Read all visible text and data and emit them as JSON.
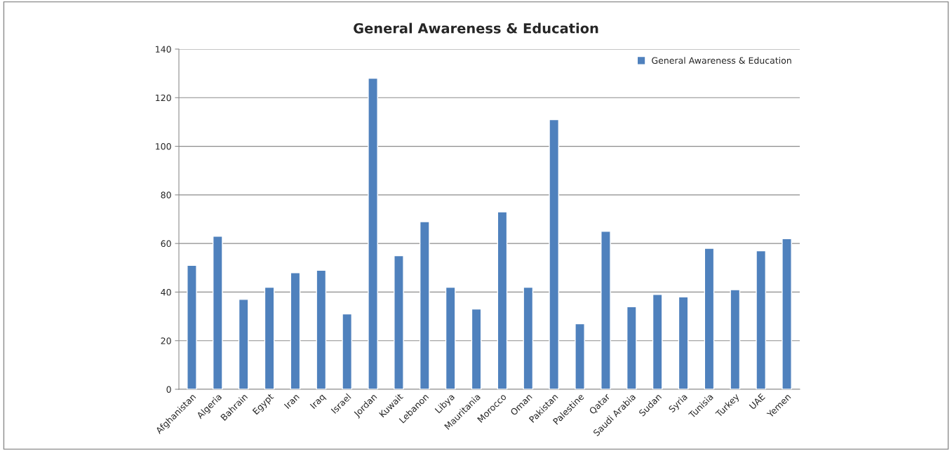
{
  "chart_data": {
    "type": "bar",
    "title": "General Awareness & Education",
    "categories": [
      "Afghanistan",
      "Algeria",
      "Bahrain",
      "Egypt",
      "Iran",
      "Iraq",
      "Israel",
      "Jordan",
      "Kuwait",
      "Lebanon",
      "Libya",
      "Mauritania",
      "Morocco",
      "Oman",
      "Pakistan",
      "Palestine",
      "Qatar",
      "Saudi Arabia",
      "Sudan",
      "Syria",
      "Tunisia",
      "Turkey",
      "UAE",
      "Yemen"
    ],
    "series": [
      {
        "name": "General Awareness & Education",
        "color": "#4f81bd",
        "values": [
          51,
          63,
          37,
          42,
          48,
          49,
          31,
          128,
          55,
          69,
          42,
          33,
          73,
          42,
          111,
          27,
          65,
          34,
          39,
          38,
          58,
          41,
          57,
          62
        ]
      }
    ],
    "ylim": [
      0,
      140
    ],
    "yticks": [
      0,
      20,
      40,
      60,
      80,
      100,
      120,
      140
    ],
    "grid": "y",
    "legend": "top right"
  }
}
